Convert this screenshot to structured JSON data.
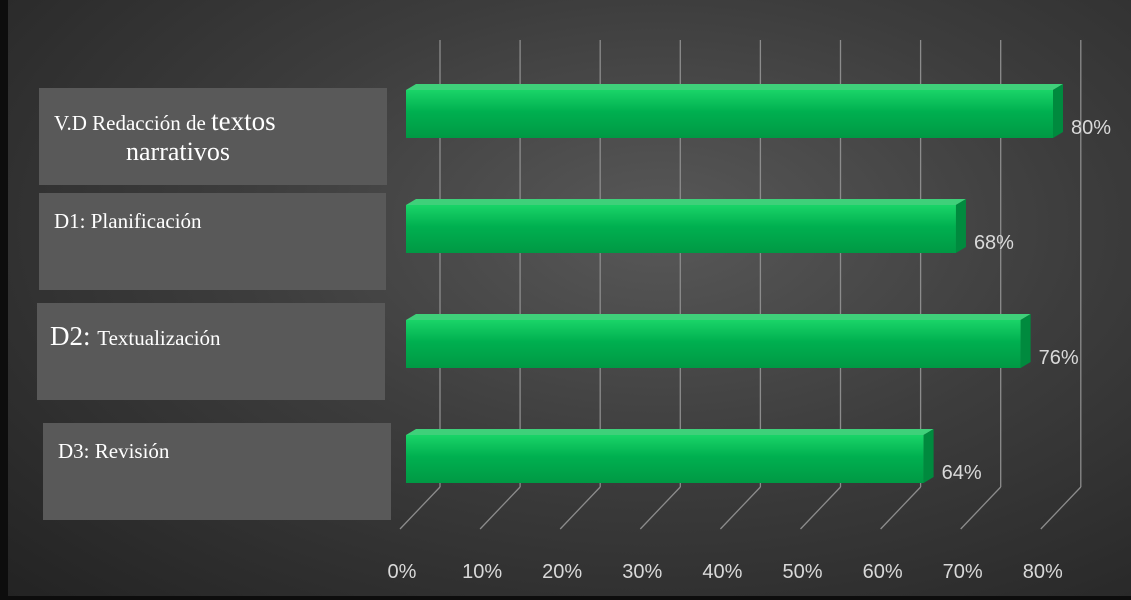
{
  "chart_data": {
    "type": "bar",
    "orientation": "horizontal",
    "style": "3d",
    "categories": [
      "V.D Redacción de textos narrativos",
      "D1: Planificación",
      "D2: Textualización",
      "D3: Revisión"
    ],
    "values": [
      0.8,
      0.68,
      0.76,
      0.64
    ],
    "value_labels": [
      "80%",
      "68%",
      "76%",
      "64%"
    ],
    "xlim": [
      0,
      0.8
    ],
    "ticks": [
      "0%",
      "10%",
      "20%",
      "30%",
      "40%",
      "50%",
      "60%",
      "70%",
      "80%"
    ],
    "grid": true,
    "bar_color": "#00b050",
    "title": "",
    "xlabel": "",
    "ylabel": ""
  },
  "category_boxes": [
    {
      "line1_small": "V.D Redacción de",
      "line1_big": "textos",
      "line2": "narrativos"
    },
    {
      "prefix": "D1:",
      "rest": "Planificación"
    },
    {
      "prefix": "D2:",
      "rest": "Textualización"
    },
    {
      "prefix": "D3:",
      "rest": "Revisión"
    }
  ]
}
